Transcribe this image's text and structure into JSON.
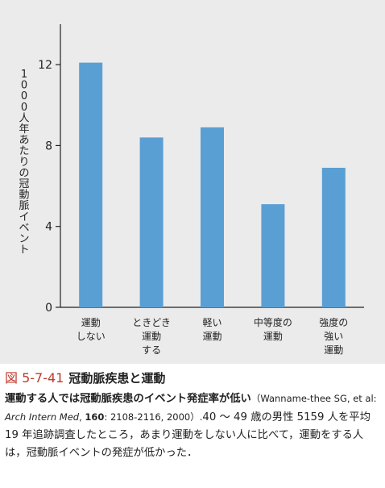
{
  "chart_data": {
    "type": "bar",
    "categories": [
      "運動\nしない",
      "ときどき\n運動\nする",
      "軽い\n運動",
      "中等度の\n運動",
      "強度の\n強い\n運動"
    ],
    "values": [
      12.1,
      8.4,
      8.9,
      5.1,
      6.9
    ],
    "ylabel": "1000人年あたりの冠動脈イベント",
    "yticks": [
      0,
      4,
      8,
      12
    ],
    "ylim": [
      0,
      14
    ],
    "grid": false,
    "bar_color": "#5a9fd4"
  },
  "caption": {
    "fig_number": "図 5-7-41",
    "fig_title": "冠動脈疾患と運動",
    "lead": "運動する人では冠動脈疾患のイベント発症率が低い",
    "ref_open": "（Wanname-thee SG, et al: ",
    "journal": "Arch Intern Med",
    "ref_sep": ", ",
    "volume": "160",
    "ref_rest": ": 2108-2116, 2000）.",
    "body": "40 ～ 49 歳の男性 5159 人を平均 19 年追跡調査したところ，あまり運動をしない人に比べて，運動をする人は，冠動脈イベントの発症が低かった．"
  }
}
